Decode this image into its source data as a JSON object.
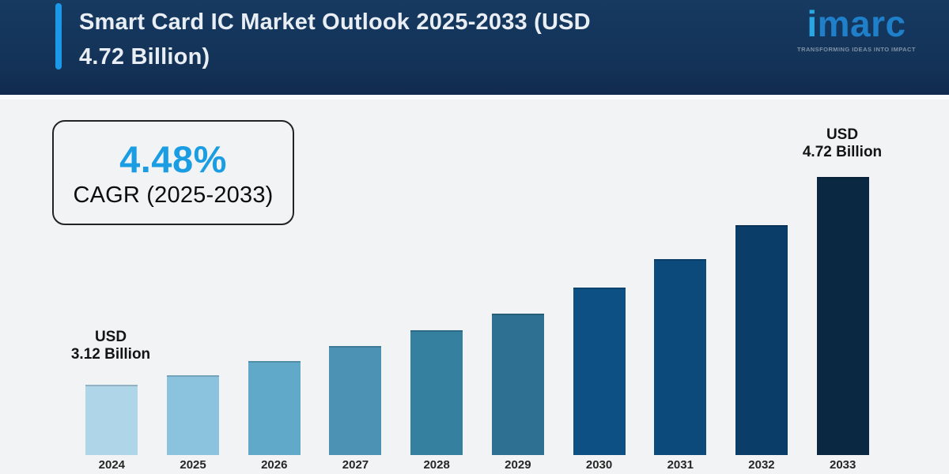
{
  "page": {
    "background": "#F2F3F4"
  },
  "header": {
    "title_line1": "Smart Card IC Market Outlook 2025-2033 (USD",
    "title_line2": "4.72 Billion)",
    "background": "#14365C",
    "accent_bar_color": "#1B99E8",
    "logo": {
      "brand_first_letter": "i",
      "brand_rest": "marc",
      "tagline": "TRANSFORMING IDEAS INTO IMPACT",
      "brand_color_primary": "#2AA7E2",
      "brand_color_secondary": "#1F7FC9",
      "tagline_color": "#7E92A5"
    }
  },
  "cagr_badge": {
    "value": "4.48%",
    "label": "CAGR (2025-2033)",
    "value_color": "#1B9DE3"
  },
  "callouts": {
    "start": {
      "line1": "USD",
      "line2": "3.12 Billion"
    },
    "end": {
      "line1": "USD",
      "line2": "4.72 Billion"
    }
  },
  "chart_data": {
    "type": "bar",
    "title": "Smart Card IC Market Outlook 2025-2033 (USD 4.72 Billion)",
    "unit": "USD Billion",
    "categories": [
      "2024",
      "2025",
      "2026",
      "2027",
      "2028",
      "2029",
      "2030",
      "2031",
      "2032",
      "2033"
    ],
    "values": [
      3.12,
      3.19,
      3.3,
      3.42,
      3.54,
      3.67,
      3.87,
      4.09,
      4.35,
      4.72
    ],
    "labeled_values": {
      "2024": "USD 3.12 Billion",
      "2033": "USD 4.72 Billion"
    },
    "cagr_annotation": "4.48% CAGR (2025-2033)",
    "bar_colors": [
      "#AFD5E8",
      "#8BC3DE",
      "#61A9C8",
      "#4B92B4",
      "#35809F",
      "#2E7092",
      "#0D5083",
      "#0C4A7C",
      "#0A3D68",
      "#0B2843"
    ],
    "xlabel": "",
    "ylabel": "",
    "y_axis_visible": false,
    "gridlines": false,
    "legend": "none",
    "value_axis_truncated": true
  }
}
